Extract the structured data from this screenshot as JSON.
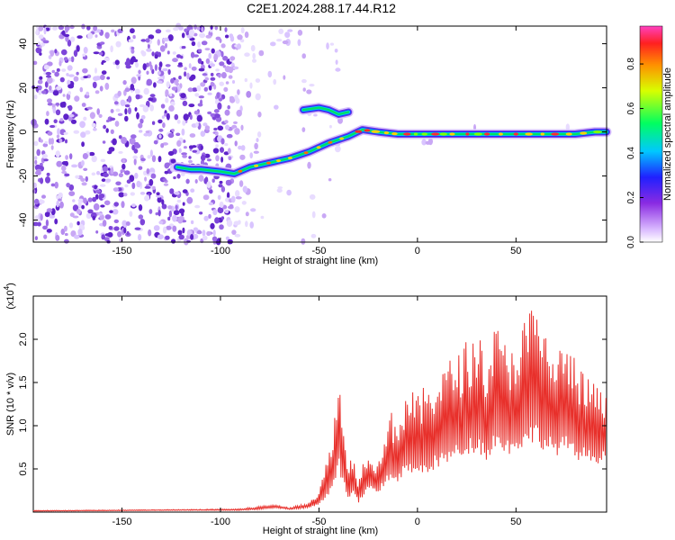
{
  "chart_data": [
    {
      "type": "heatmap",
      "title": "C2E1.2024.288.17.44.R12",
      "xlabel": "Height of straight line (km)",
      "ylabel": "Frequency (Hz)",
      "xlim": [
        -195,
        96
      ],
      "ylim": [
        -50,
        48
      ],
      "x_ticks": [
        -150,
        -100,
        -50,
        0,
        50
      ],
      "y_ticks": [
        -40,
        -20,
        0,
        20,
        40
      ],
      "colorbar": {
        "label": "Normalized spectral amplitude",
        "range": [
          0,
          0.97
        ],
        "ticks": [
          "0.0",
          "0.2",
          "0.4",
          "0.6",
          "0.8"
        ],
        "tick_values": [
          0,
          0.2,
          0.4,
          0.6,
          0.8
        ]
      },
      "trace": {
        "x": [
          -122,
          -115,
          -110,
          -100,
          -93,
          -85,
          -75,
          -65,
          -55,
          -45,
          -35,
          -28,
          -20,
          -10,
          0,
          10,
          20,
          30,
          40,
          50,
          60,
          70,
          80,
          90,
          96
        ],
        "y": [
          -16,
          -17,
          -17,
          -18,
          -19,
          -16,
          -14,
          -12,
          -9,
          -5,
          -2,
          1,
          0,
          -1,
          -1,
          -1,
          -1,
          -1,
          -1,
          -1,
          -1,
          -1,
          -1,
          0,
          0
        ]
      },
      "branch": {
        "x": [
          -58,
          -50,
          -45,
          -40,
          -35
        ],
        "y": [
          10,
          11,
          10,
          8,
          9
        ]
      }
    },
    {
      "type": "line",
      "xlabel": "Height of straight line (km)",
      "ylabel": "SNR (10 * v/v)",
      "ylabel_multiplier": "(x10",
      "ylabel_multiplier_exp": "4",
      "xlim": [
        -195,
        96
      ],
      "ylim": [
        0,
        2.5
      ],
      "x_ticks": [
        -150,
        -100,
        -50,
        0,
        50
      ],
      "y_ticks": [
        0.5,
        1.0,
        1.5,
        2.0
      ],
      "y_tick_labels": [
        "0.5",
        "1.0",
        "1.5",
        "2.0"
      ],
      "series": [
        {
          "color": "#e8302b",
          "envelope_x": [
            -195,
            -120,
            -90,
            -80,
            -72,
            -65,
            -55,
            -50,
            -45,
            -42,
            -40,
            -38,
            -35,
            -32,
            -30,
            -25,
            -20,
            -15,
            -10,
            -5,
            0,
            5,
            10,
            15,
            20,
            25,
            30,
            35,
            40,
            45,
            50,
            55,
            60,
            65,
            70,
            75,
            80,
            85,
            90,
            96
          ],
          "envelope_y": [
            0.02,
            0.03,
            0.04,
            0.07,
            0.09,
            0.05,
            0.12,
            0.25,
            0.7,
            1.2,
            1.62,
            1.1,
            0.6,
            0.7,
            0.4,
            0.8,
            0.55,
            1.2,
            1.1,
            1.45,
            1.35,
            1.5,
            1.65,
            1.75,
            1.85,
            2.0,
            2.1,
            1.9,
            2.2,
            1.95,
            2.05,
            2.3,
            2.45,
            2.1,
            1.9,
            2.0,
            1.8,
            1.6,
            1.5,
            1.35
          ],
          "floor_y": [
            0.01,
            0.02,
            0.02,
            0.03,
            0.05,
            0.03,
            0.05,
            0.08,
            0.2,
            0.35,
            0.5,
            0.3,
            0.15,
            0.2,
            0.08,
            0.25,
            0.2,
            0.35,
            0.35,
            0.45,
            0.4,
            0.45,
            0.5,
            0.55,
            0.6,
            0.65,
            0.7,
            0.6,
            0.75,
            0.65,
            0.7,
            0.75,
            0.8,
            0.7,
            0.65,
            0.7,
            0.6,
            0.6,
            0.55,
            0.6
          ]
        }
      ]
    }
  ]
}
